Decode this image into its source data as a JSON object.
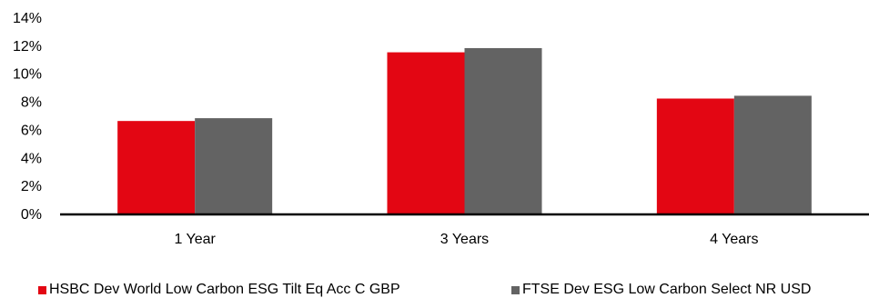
{
  "chart_data": {
    "type": "bar",
    "title": "",
    "xlabel": "",
    "ylabel": "",
    "categories": [
      "1 Year",
      "3 Years",
      "4 Years"
    ],
    "series": [
      {
        "name": "HSBC Dev World Low Carbon ESG Tilt Eq Acc C GBP",
        "color": "#e30613",
        "values": [
          6.6,
          11.5,
          8.2
        ]
      },
      {
        "name": "FTSE Dev ESG Low Carbon Select NR USD",
        "color": "#636363",
        "values": [
          6.8,
          11.8,
          8.4
        ]
      }
    ],
    "ylim": [
      0,
      14
    ],
    "y_ticks": [
      "0%",
      "2%",
      "4%",
      "6%",
      "8%",
      "10%",
      "12%",
      "14%"
    ],
    "grid": false,
    "legend_position": "bottom"
  }
}
